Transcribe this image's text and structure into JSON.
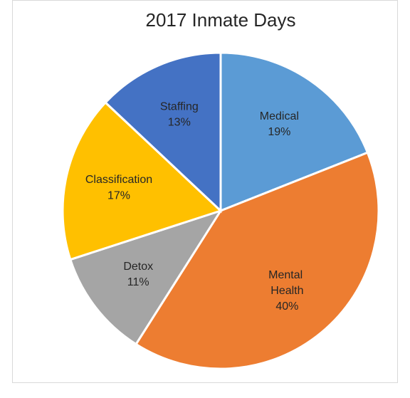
{
  "chart_data": {
    "type": "pie",
    "title": "2017 Inmate Days",
    "categories": [
      "Medical",
      "Mental Health",
      "Detox",
      "Classification",
      "Staffing"
    ],
    "values": [
      19,
      40,
      11,
      17,
      13
    ],
    "value_labels": [
      "19%",
      "40%",
      "11%",
      "17%",
      "13%"
    ],
    "colors": [
      "#5b9bd5",
      "#ed7d31",
      "#a5a5a5",
      "#ffc000",
      "#4472c4"
    ]
  }
}
